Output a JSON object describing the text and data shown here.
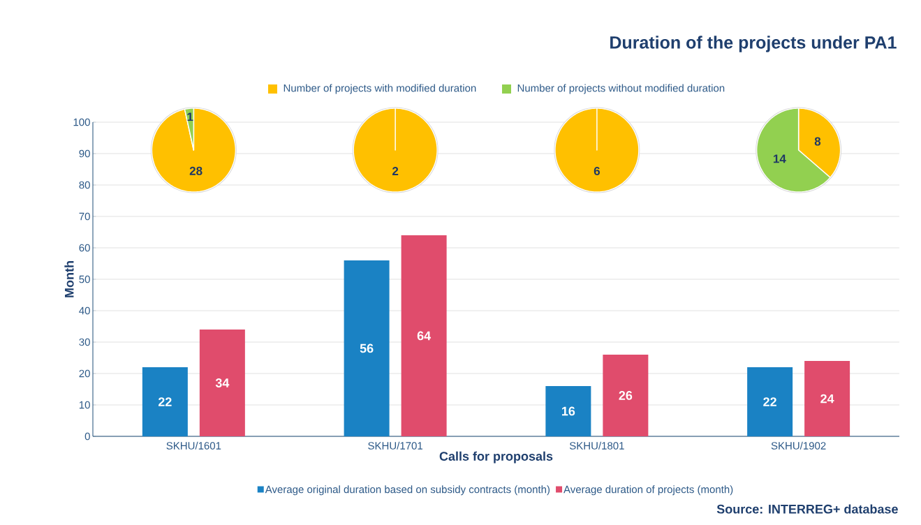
{
  "chart_data": [
    {
      "type": "bar",
      "title": "Duration of the projects under PA1",
      "xlabel": "Calls for proposals",
      "ylabel": "Month",
      "categories": [
        "SKHU/1601",
        "SKHU/1701",
        "SKHU/1801",
        "SKHU/1902"
      ],
      "series": [
        {
          "name": "Average original duration based on subsidy contracts (month)",
          "color": "#1a82c4",
          "values": [
            22,
            56,
            16,
            22
          ]
        },
        {
          "name": "Average duration of projects (month)",
          "color": "#e04c6c",
          "values": [
            34,
            64,
            26,
            24
          ]
        }
      ],
      "ylim": [
        0,
        100
      ],
      "yticks": [
        0,
        10,
        20,
        30,
        40,
        50,
        60,
        70,
        80,
        90,
        100
      ],
      "grid": "y",
      "legend": "bottom",
      "data_labels": true,
      "annotations": [
        "Source: INTERREG+ database"
      ]
    },
    {
      "type": "pie",
      "categories": [
        "Number of projects with modified duration",
        "Number of projects without modified duration"
      ],
      "values": [
        28,
        1
      ],
      "colors": [
        "#ffc000",
        "#92d050"
      ],
      "data_labels": true,
      "legend": "top"
    },
    {
      "type": "pie",
      "categories": [
        null
      ],
      "values": [
        2
      ],
      "colors": [
        "#ffc000"
      ],
      "data_labels": true
    },
    {
      "type": "pie",
      "categories": [
        null
      ],
      "values": [
        6
      ],
      "colors": [
        "#ffc000"
      ],
      "data_labels": true
    },
    {
      "type": "pie",
      "categories": [
        null,
        null
      ],
      "values": [
        8,
        14
      ],
      "colors": [
        "#ffc000",
        "#92d050"
      ],
      "data_labels": true
    }
  ]
}
